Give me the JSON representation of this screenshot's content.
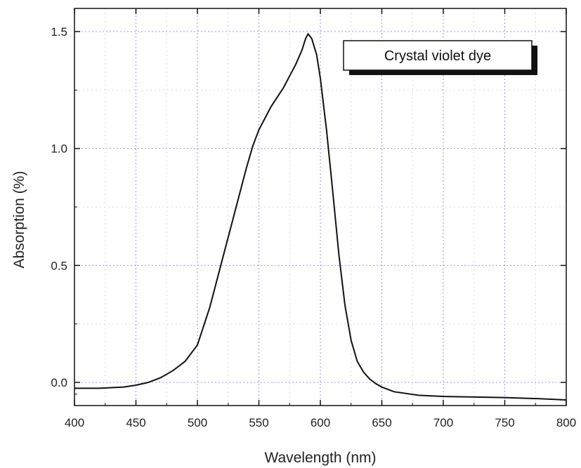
{
  "chart_data": {
    "type": "line",
    "xlabel": "Wavelength (nm)",
    "ylabel": "Absorption (%)",
    "xlim": [
      400,
      800
    ],
    "ylim": [
      -0.1,
      1.6
    ],
    "x_ticks": [
      400,
      450,
      500,
      550,
      600,
      650,
      700,
      750,
      800
    ],
    "x_tick_labels": [
      "400",
      "450",
      "500",
      "550",
      "600",
      "650",
      "700",
      "750",
      "800"
    ],
    "y_ticks": [
      0.0,
      0.5,
      1.0,
      1.5
    ],
    "y_tick_labels": [
      "0.0",
      "0.5",
      "1.0",
      "1.5"
    ],
    "grid": true,
    "legend_position": "top-right",
    "series": [
      {
        "name": "Crystal violet dye",
        "color": "#111111",
        "x": [
          400,
          420,
          440,
          450,
          460,
          470,
          480,
          490,
          500,
          510,
          520,
          530,
          540,
          545,
          550,
          560,
          570,
          575,
          580,
          585,
          588,
          590,
          593,
          597,
          600,
          605,
          610,
          615,
          620,
          625,
          630,
          635,
          640,
          645,
          650,
          660,
          680,
          700,
          750,
          780,
          800
        ],
        "y": [
          -0.025,
          -0.025,
          -0.02,
          -0.012,
          0.0,
          0.02,
          0.05,
          0.09,
          0.16,
          0.32,
          0.52,
          0.72,
          0.92,
          1.01,
          1.08,
          1.18,
          1.26,
          1.31,
          1.36,
          1.42,
          1.47,
          1.49,
          1.47,
          1.4,
          1.3,
          1.08,
          0.82,
          0.55,
          0.33,
          0.18,
          0.09,
          0.045,
          0.015,
          -0.005,
          -0.02,
          -0.04,
          -0.055,
          -0.06,
          -0.065,
          -0.07,
          -0.075
        ]
      }
    ]
  }
}
